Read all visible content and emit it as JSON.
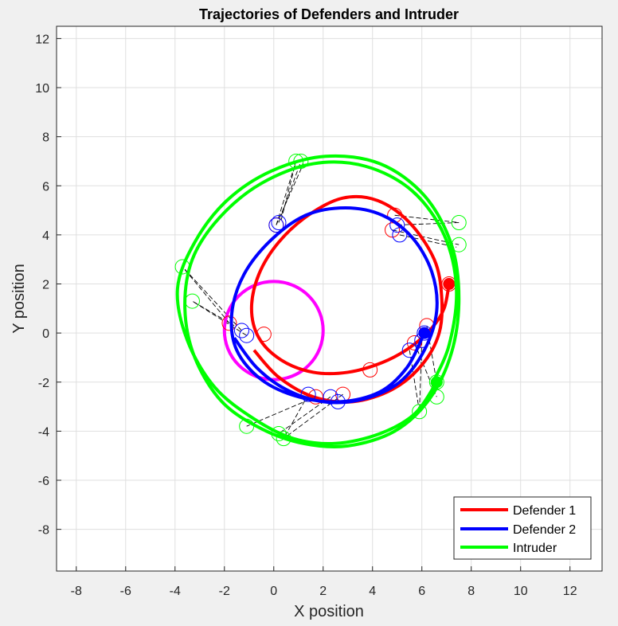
{
  "chart_data": {
    "type": "line",
    "title": "Trajectories of Defenders and Intruder",
    "xlabel": "X position",
    "ylabel": "Y position",
    "xlim": [
      -8.8,
      13.3
    ],
    "ylim": [
      -9.7,
      12.5
    ],
    "xticks": [
      -8,
      -6,
      -4,
      -2,
      0,
      2,
      4,
      6,
      8,
      10,
      12
    ],
    "yticks": [
      -8,
      -6,
      -4,
      -2,
      0,
      2,
      4,
      6,
      8,
      10,
      12
    ],
    "grid": true,
    "legend_position": "bottom-right",
    "series": [
      {
        "name": "Defender 1",
        "color": "#ff0000",
        "path": [
          [
            7.1,
            2.0
          ],
          [
            6.9,
            1.0
          ],
          [
            6.4,
            0.2
          ],
          [
            5.5,
            -0.6
          ],
          [
            4.4,
            -1.2
          ],
          [
            3.0,
            -1.6
          ],
          [
            1.6,
            -1.6
          ],
          [
            0.3,
            -1.1
          ],
          [
            -0.6,
            -0.2
          ],
          [
            -0.9,
            1.0
          ],
          [
            -0.6,
            2.4
          ],
          [
            0.2,
            3.7
          ],
          [
            1.4,
            4.8
          ],
          [
            2.8,
            5.5
          ],
          [
            4.2,
            5.4
          ],
          [
            5.5,
            4.5
          ],
          [
            6.5,
            3.0
          ],
          [
            6.8,
            1.5
          ],
          [
            6.7,
            0.0
          ],
          [
            6.0,
            -1.3
          ],
          [
            4.8,
            -2.3
          ],
          [
            3.2,
            -2.8
          ],
          [
            1.6,
            -2.6
          ],
          [
            0.2,
            -1.8
          ],
          [
            -0.8,
            -0.7
          ]
        ],
        "markers": [
          [
            7.1,
            2.0
          ],
          [
            6.2,
            0.3
          ],
          [
            3.9,
            -1.5
          ],
          [
            -0.4,
            -0.05
          ],
          [
            0.1,
            4.4
          ],
          [
            4.9,
            4.8
          ],
          [
            4.8,
            4.2
          ],
          [
            5.7,
            -0.4
          ],
          [
            1.7,
            -2.6
          ],
          [
            2.8,
            -2.5
          ],
          [
            -1.8,
            0.4
          ]
        ]
      },
      {
        "name": "Defender 2",
        "color": "#0000ff",
        "path": [
          [
            6.1,
            0.0
          ],
          [
            5.4,
            -1.4
          ],
          [
            4.3,
            -2.4
          ],
          [
            2.7,
            -2.8
          ],
          [
            1.0,
            -2.6
          ],
          [
            -0.5,
            -1.9
          ],
          [
            -1.5,
            -0.7
          ],
          [
            -1.7,
            0.8
          ],
          [
            -1.2,
            2.4
          ],
          [
            -0.1,
            3.8
          ],
          [
            1.3,
            4.8
          ],
          [
            2.9,
            5.1
          ],
          [
            4.4,
            4.8
          ],
          [
            5.6,
            3.9
          ],
          [
            6.4,
            2.5
          ],
          [
            6.6,
            0.9
          ],
          [
            6.1,
            -0.7
          ],
          [
            5.1,
            -2.0
          ],
          [
            3.6,
            -2.7
          ],
          [
            2.0,
            -2.8
          ],
          [
            0.5,
            -2.3
          ],
          [
            -0.7,
            -1.4
          ],
          [
            -1.6,
            -0.2
          ]
        ],
        "markers": [
          [
            6.1,
            0.0
          ],
          [
            6.0,
            -0.3
          ],
          [
            5.5,
            -0.7
          ],
          [
            2.3,
            -2.6
          ],
          [
            2.6,
            -2.8
          ],
          [
            1.4,
            -2.5
          ],
          [
            -1.1,
            -0.1
          ],
          [
            -1.3,
            0.1
          ],
          [
            0.2,
            4.5
          ],
          [
            0.1,
            4.4
          ],
          [
            5.0,
            4.4
          ],
          [
            5.1,
            4.0
          ]
        ]
      },
      {
        "name": "Intruder",
        "color": "#00ff00",
        "path": [
          [
            6.6,
            -2.0
          ],
          [
            5.7,
            -3.3
          ],
          [
            4.3,
            -4.1
          ],
          [
            2.5,
            -4.5
          ],
          [
            0.8,
            -4.3
          ],
          [
            -0.8,
            -3.5
          ],
          [
            -2.4,
            -2.2
          ],
          [
            -3.5,
            -0.3
          ],
          [
            -3.9,
            1.8
          ],
          [
            -3.2,
            3.7
          ],
          [
            -1.9,
            5.4
          ],
          [
            -0.1,
            6.6
          ],
          [
            2.1,
            7.2
          ],
          [
            4.3,
            6.9
          ],
          [
            6.1,
            5.6
          ],
          [
            7.2,
            3.6
          ],
          [
            7.5,
            1.4
          ],
          [
            7.2,
            -0.8
          ],
          [
            6.3,
            -2.7
          ],
          [
            4.9,
            -4.0
          ],
          [
            3.0,
            -4.6
          ],
          [
            1.2,
            -4.5
          ],
          [
            -0.5,
            -3.9
          ],
          [
            -2.1,
            -2.8
          ],
          [
            -3.2,
            -1.0
          ],
          [
            -3.6,
            1.0
          ],
          [
            -3.3,
            3.0
          ],
          [
            -2.2,
            4.7
          ],
          [
            -0.5,
            6.1
          ],
          [
            1.6,
            6.9
          ],
          [
            3.7,
            6.8
          ],
          [
            5.6,
            5.8
          ],
          [
            6.9,
            4.0
          ],
          [
            7.4,
            1.8
          ],
          [
            7.1,
            -0.5
          ],
          [
            6.4,
            -2.1
          ]
        ],
        "markers": [
          [
            6.6,
            -2.0
          ],
          [
            6.6,
            -2.6
          ],
          [
            5.9,
            -3.2
          ],
          [
            0.4,
            -4.3
          ],
          [
            0.2,
            -4.1
          ],
          [
            -1.1,
            -3.8
          ],
          [
            -3.7,
            2.7
          ],
          [
            -3.3,
            1.3
          ],
          [
            0.9,
            7.0
          ],
          [
            1.1,
            7.0
          ],
          [
            7.5,
            4.5
          ],
          [
            7.5,
            3.6
          ]
        ]
      }
    ],
    "extra_circle": {
      "color": "#ff00ff",
      "center": [
        0.0,
        0.1
      ],
      "radius": 2.0
    },
    "dashed_links": [
      [
        [
          4.9,
          4.8
        ],
        [
          7.5,
          4.5
        ]
      ],
      [
        [
          4.8,
          4.2
        ],
        [
          7.5,
          3.6
        ]
      ],
      [
        [
          5.0,
          4.4
        ],
        [
          7.5,
          4.5
        ]
      ],
      [
        [
          5.1,
          4.0
        ],
        [
          7.4,
          3.5
        ]
      ],
      [
        [
          0.1,
          4.4
        ],
        [
          0.9,
          7.0
        ]
      ],
      [
        [
          0.2,
          4.5
        ],
        [
          1.1,
          7.0
        ]
      ],
      [
        [
          0.1,
          4.4
        ],
        [
          1.2,
          6.9
        ]
      ],
      [
        [
          0.3,
          4.6
        ],
        [
          0.9,
          7.0
        ]
      ],
      [
        [
          -1.8,
          0.4
        ],
        [
          -3.7,
          2.7
        ]
      ],
      [
        [
          -1.1,
          -0.1
        ],
        [
          -3.3,
          1.3
        ]
      ],
      [
        [
          -1.3,
          0.1
        ],
        [
          -3.7,
          2.7
        ]
      ],
      [
        [
          -1.6,
          0.3
        ],
        [
          -3.3,
          1.3
        ]
      ],
      [
        [
          1.7,
          -2.6
        ],
        [
          -1.1,
          -3.8
        ]
      ],
      [
        [
          1.4,
          -2.5
        ],
        [
          0.4,
          -4.3
        ]
      ],
      [
        [
          2.3,
          -2.6
        ],
        [
          0.2,
          -4.1
        ]
      ],
      [
        [
          2.8,
          -2.5
        ],
        [
          0.4,
          -4.3
        ]
      ],
      [
        [
          5.7,
          -0.4
        ],
        [
          6.6,
          -2.6
        ]
      ],
      [
        [
          6.0,
          -0.3
        ],
        [
          5.9,
          -3.2
        ]
      ],
      [
        [
          6.2,
          0.3
        ],
        [
          6.6,
          -2.0
        ]
      ],
      [
        [
          5.5,
          -0.7
        ],
        [
          5.9,
          -3.2
        ]
      ]
    ]
  }
}
